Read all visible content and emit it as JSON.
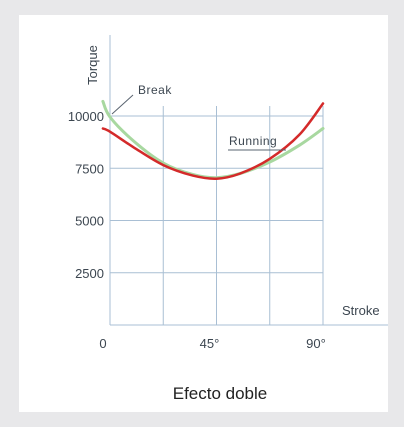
{
  "chart_data": {
    "type": "line",
    "title": "",
    "caption": "Efecto doble",
    "xlabel": "Stroke",
    "ylabel": "Torque",
    "x_ticks": [
      "0",
      "45°",
      "90°"
    ],
    "x_range": [
      0,
      95
    ],
    "y_ticks": [
      2500,
      5000,
      7500,
      10000
    ],
    "y_range": [
      0,
      10000
    ],
    "grid": true,
    "series": [
      {
        "name": "Break",
        "color": "#a8d8a0",
        "x": [
          -3,
          0,
          10,
          22.5,
          35,
          45,
          55,
          67.5,
          80,
          90
        ],
        "y": [
          10700,
          9950,
          8800,
          7750,
          7200,
          7050,
          7250,
          7800,
          8600,
          9400
        ]
      },
      {
        "name": "Running",
        "color": "#d42a2a",
        "x": [
          -3,
          0,
          10,
          22.5,
          35,
          45,
          55,
          67.5,
          80,
          90
        ],
        "y": [
          9400,
          9250,
          8500,
          7650,
          7150,
          7000,
          7250,
          7950,
          9100,
          10600
        ]
      }
    ]
  }
}
